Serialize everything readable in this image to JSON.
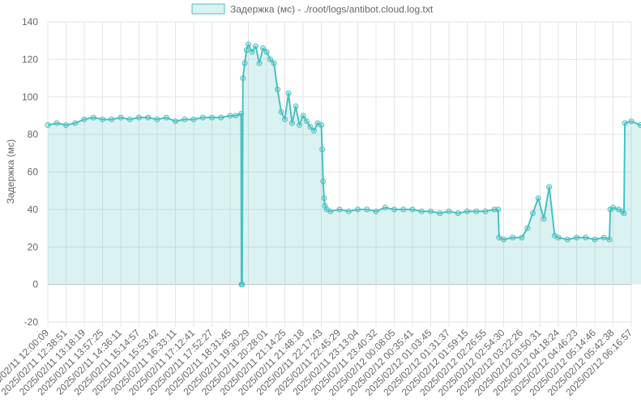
{
  "chart_data": {
    "type": "line",
    "title": "",
    "ylabel": "Задержка (мс)",
    "xlabel": "",
    "ylim": [
      -20,
      140
    ],
    "yticks": [
      -20,
      0,
      20,
      40,
      60,
      80,
      100,
      120,
      140
    ],
    "grid": true,
    "fill": true,
    "legend_position": "top",
    "legend": [
      "Задержка (мс) - ./root/logs/antibot.cloud.log.txt"
    ],
    "colors": {
      "line": "#4bc0c0",
      "fill": "rgba(75,192,192,0.2)",
      "grid": "#e5e5e5",
      "zero_line": "#c8c8c8"
    },
    "x_tick_labels": [
      "2025/02/11 12:00:09",
      "2025/02/11 12:38:51",
      "2025/02/11 13:18:19",
      "2025/02/11 13:57:25",
      "2025/02/11 14:36:11",
      "2025/02/11 15:14:57",
      "2025/02/11 15:53:42",
      "2025/02/11 16:33:11",
      "2025/02/11 17:12:41",
      "2025/02/11 17:52:27",
      "2025/02/11 18:31:45",
      "2025/02/11 19:30:29",
      "2025/02/11 20:28:01",
      "2025/02/11 21:14:25",
      "2025/02/11 21:48:18",
      "2025/02/11 22:17:43",
      "2025/02/11 22:45:29",
      "2025/02/11 23:13:04",
      "2025/02/11 23:40:32",
      "2025/02/12 00:08:05",
      "2025/02/12 00:35:41",
      "2025/02/12 01:03:45",
      "2025/02/12 01:31:37",
      "2025/02/12 01:59:15",
      "2025/02/12 02:26:55",
      "2025/02/12 02:54:30",
      "2025/02/12 03:22:26",
      "2025/02/12 03:50:31",
      "2025/02/12 04:18:24",
      "2025/02/12 04:46:23",
      "2025/02/12 05:14:46",
      "2025/02/12 05:42:38",
      "2025/02/12 06:16:57"
    ],
    "series": [
      {
        "name": "Задержка (мс) - ./root/logs/antibot.cloud.log.txt",
        "x_positions": [
          0.0,
          0.5,
          1.0,
          1.5,
          2.0,
          2.5,
          3.0,
          3.5,
          4.0,
          4.5,
          5.0,
          5.5,
          6.0,
          6.5,
          7.0,
          7.5,
          8.0,
          8.5,
          9.0,
          9.5,
          10.0,
          10.3,
          10.6,
          10.62,
          10.66,
          10.7,
          10.8,
          10.9,
          11.0,
          11.2,
          11.4,
          11.6,
          11.8,
          12.0,
          12.2,
          12.4,
          12.6,
          12.8,
          13.0,
          13.2,
          13.4,
          13.6,
          13.8,
          14.0,
          14.2,
          14.4,
          14.6,
          14.8,
          15.0,
          15.05,
          15.1,
          15.15,
          15.2,
          15.3,
          15.5,
          16.0,
          16.5,
          17.0,
          17.5,
          18.0,
          18.5,
          19.0,
          19.5,
          20.0,
          20.5,
          21.0,
          21.5,
          22.0,
          22.5,
          23.0,
          23.5,
          24.0,
          24.5,
          24.7,
          24.75,
          25.0,
          25.5,
          26.0,
          26.3,
          26.6,
          26.9,
          27.2,
          27.5,
          27.8,
          28.0,
          28.5,
          29.0,
          29.5,
          30.0,
          30.5,
          30.8,
          30.85,
          31.0,
          31.3,
          31.5,
          31.6,
          31.65,
          32.0,
          32.5,
          33.0
        ],
        "values": [
          85,
          86,
          85,
          86,
          88,
          89,
          88,
          88,
          89,
          88,
          89,
          89,
          88,
          89,
          87,
          88,
          88,
          89,
          89,
          89,
          90,
          90,
          91,
          0,
          0,
          110,
          118,
          125,
          128,
          124,
          127,
          118,
          126,
          124,
          120,
          118,
          104,
          92,
          88,
          102,
          86,
          95,
          85,
          90,
          87,
          84,
          82,
          86,
          85,
          72,
          55,
          46,
          42,
          40,
          39,
          40,
          39,
          40,
          40,
          39,
          41,
          40,
          40,
          40,
          39,
          39,
          38,
          39,
          38,
          39,
          39,
          39,
          40,
          40,
          25,
          24,
          25,
          25,
          30,
          38,
          46,
          35,
          52,
          26,
          25,
          24,
          25,
          25,
          24,
          25,
          24,
          40,
          41,
          40,
          39,
          38,
          86,
          87,
          85,
          86
        ]
      }
    ]
  }
}
